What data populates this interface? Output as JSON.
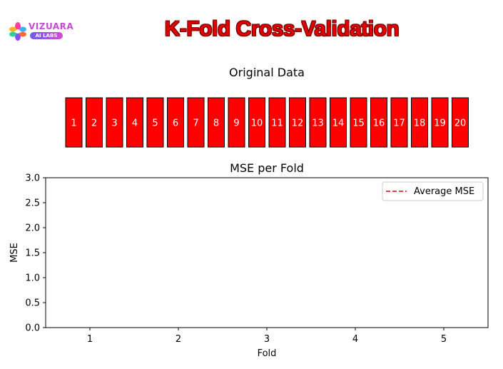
{
  "header": {
    "logo_name": "VIZUARA",
    "logo_badge": "AI LABS",
    "title": "K-Fold Cross-Validation"
  },
  "colors": {
    "box_fill": "#ff0000",
    "box_stroke": "#000000",
    "average_line": "#e00000",
    "title_red": "#e00000"
  },
  "chart_data": [
    {
      "type": "table",
      "title": "Original Data",
      "cells": [
        "1",
        "2",
        "3",
        "4",
        "5",
        "6",
        "7",
        "8",
        "9",
        "10",
        "11",
        "12",
        "13",
        "14",
        "15",
        "16",
        "17",
        "18",
        "19",
        "20"
      ]
    },
    {
      "type": "line",
      "title": "MSE per Fold",
      "xlabel": "Fold",
      "ylabel": "MSE",
      "xlim": [
        0.5,
        5.5
      ],
      "ylim": [
        0,
        3.0
      ],
      "xticks": [
        "1",
        "2",
        "3",
        "4",
        "5"
      ],
      "yticks": [
        "0.0",
        "0.5",
        "1.0",
        "1.5",
        "2.0",
        "2.5",
        "3.0"
      ],
      "grid": false,
      "legend": "top-right",
      "series": [
        {
          "name": "Average MSE",
          "style": "dashed",
          "values": []
        }
      ]
    }
  ]
}
